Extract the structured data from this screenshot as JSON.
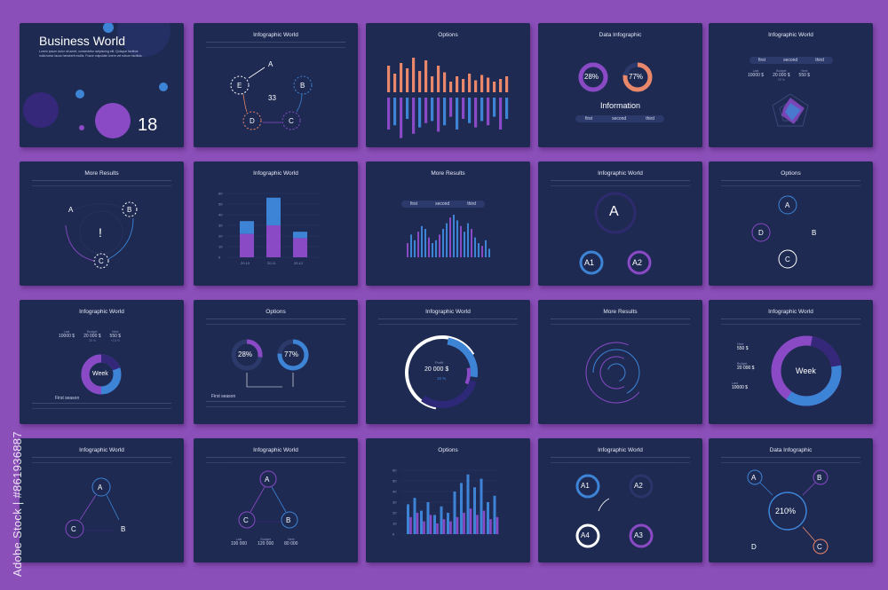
{
  "watermark": "Adobe Stock | #861936887",
  "colors": {
    "background": "#8a4fb8",
    "slide": "#1e2a52",
    "purple": "#8a4ac6",
    "blue": "#3d84d6",
    "orange": "#e9876b",
    "white": "#ffffff"
  },
  "slides": {
    "s1": {
      "title": "Business World",
      "subtitle": "Lorem ipsum dolor sit amet, consectetur adipiscing elit. Quisque facilisis nulla tortor lacus hendrerit mollis. Fusce vulputate lorem vel rutrum facilisis.",
      "number": "18"
    },
    "s2": {
      "title": "Infographic World",
      "labels": [
        "A",
        "B",
        "C",
        "D",
        "E"
      ],
      "center": "33"
    },
    "s3": {
      "title": "Options"
    },
    "s4": {
      "title": "Data Infographic",
      "donut1": "28%",
      "donut2": "77%",
      "info": "Information",
      "tabs": [
        "first",
        "second",
        "third"
      ]
    },
    "s5": {
      "title": "Infographic World",
      "tabs": [
        "first",
        "second",
        "third"
      ],
      "stats": [
        {
          "label": "Last",
          "value": "10000 $",
          "pct": ""
        },
        {
          "label": "Budget",
          "value": "20 000 $",
          "pct": "25 %"
        },
        {
          "label": "Next",
          "value": "550 $",
          "pct": ""
        }
      ]
    },
    "s6": {
      "title": "More Results",
      "labels": [
        "A",
        "B",
        "C"
      ],
      "center": "!"
    },
    "s7": {
      "title": "Infographic World",
      "yticks": [
        "60",
        "50",
        "40",
        "30",
        "20",
        "10",
        "0"
      ],
      "xticks": [
        "20.10",
        "20.11",
        "20.12"
      ]
    },
    "s8": {
      "title": "More Results",
      "tabs": [
        "first",
        "second",
        "third"
      ]
    },
    "s9": {
      "title": "Infographic World",
      "labels": [
        "A",
        "A1",
        "A2"
      ]
    },
    "s10": {
      "title": "Options",
      "labels": [
        "A",
        "B",
        "C",
        "D"
      ]
    },
    "s11": {
      "title": "Infographic World",
      "center": "Week",
      "caption": "First season",
      "stats": [
        {
          "label": "Last",
          "value": "10000 $",
          "pct": ""
        },
        {
          "label": "Budget",
          "value": "20 000 $",
          "pct": "25 %"
        },
        {
          "label": "Next",
          "value": "550 $",
          "pct": "+15 %"
        }
      ]
    },
    "s12": {
      "title": "Options",
      "donut1": "28%",
      "donut2": "77%",
      "caption": "First season"
    },
    "s13": {
      "title": "Infographic World",
      "label": "Profit",
      "value": "20 000 $",
      "pct": "15 %"
    },
    "s14": {
      "title": "More Results"
    },
    "s15": {
      "title": "Infographic World",
      "center": "Week",
      "stats": [
        {
          "label": "Next",
          "value": "550 $"
        },
        {
          "label": "Budget",
          "value": "20 000 $"
        },
        {
          "label": "Last",
          "value": "10000 $"
        }
      ]
    },
    "s16": {
      "title": "Infographic World",
      "labels": [
        "A",
        "B",
        "C"
      ]
    },
    "s17": {
      "title": "Infographic World",
      "labels": [
        "A",
        "B",
        "C"
      ],
      "stats": [
        {
          "label": "Last",
          "value": "100 000"
        },
        {
          "label": "Budget",
          "value": "120 000"
        },
        {
          "label": "Next",
          "value": "80 000"
        }
      ]
    },
    "s18": {
      "title": "Options",
      "yticks": [
        "60",
        "50",
        "40",
        "30",
        "20",
        "10",
        "0"
      ]
    },
    "s19": {
      "title": "Infographic World",
      "labels": [
        "A1",
        "A2",
        "A3",
        "A4"
      ]
    },
    "s20": {
      "title": "Data Infographic",
      "labels": [
        "A",
        "B",
        "C",
        "D"
      ],
      "center": "210%"
    }
  }
}
